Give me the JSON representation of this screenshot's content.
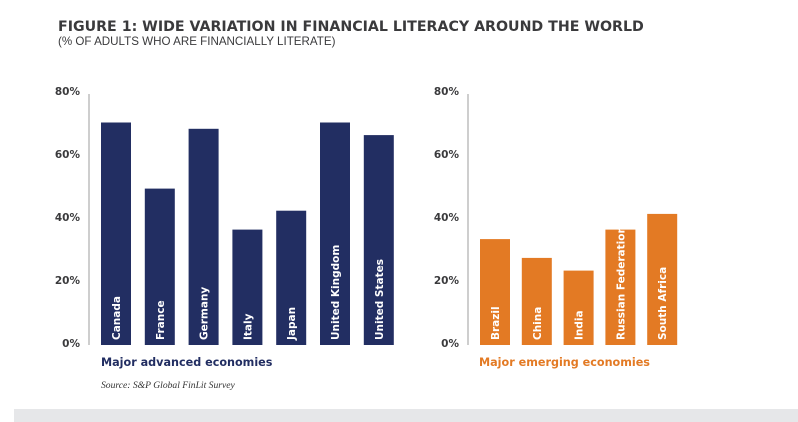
{
  "colors": {
    "advanced": "#222e62",
    "emerging": "#e37a24",
    "axis": "#bdbdbd",
    "text": "#3a3a3c",
    "footer_band": "#e6e7e9"
  },
  "chart_data": [
    {
      "type": "bar",
      "title": "FIGURE 1: WIDE VARIATION IN FINANCIAL LITERACY AROUND THE WORLD",
      "subtitle": "(% OF ADULTS WHO ARE FINANCIALLY LITERATE)",
      "group_label": "Major advanced economies",
      "categories": [
        "Canada",
        "France",
        "Germany",
        "Italy",
        "Japan",
        "United Kingdom",
        "United States"
      ],
      "values": [
        70,
        49,
        68,
        36,
        42,
        70,
        66
      ],
      "ylim": [
        0,
        80
      ],
      "yticks": [
        0,
        20,
        40,
        60,
        80
      ],
      "ytick_labels": [
        "0%",
        "20%",
        "40%",
        "60%",
        "80%"
      ],
      "xlabel": "",
      "ylabel": "",
      "grid": false,
      "legend": "none",
      "source": "Source: S&P Global FinLit Survey"
    },
    {
      "type": "bar",
      "group_label": "Major emerging economies",
      "categories": [
        "Brazil",
        "China",
        "India",
        "Russian Federation",
        "South Africa"
      ],
      "values": [
        33,
        27,
        23,
        36,
        41
      ],
      "ylim": [
        0,
        80
      ],
      "yticks": [
        0,
        20,
        40,
        60,
        80
      ],
      "ytick_labels": [
        "0%",
        "20%",
        "40%",
        "60%",
        "80%"
      ],
      "xlabel": "",
      "ylabel": "",
      "grid": false,
      "legend": "none"
    }
  ]
}
